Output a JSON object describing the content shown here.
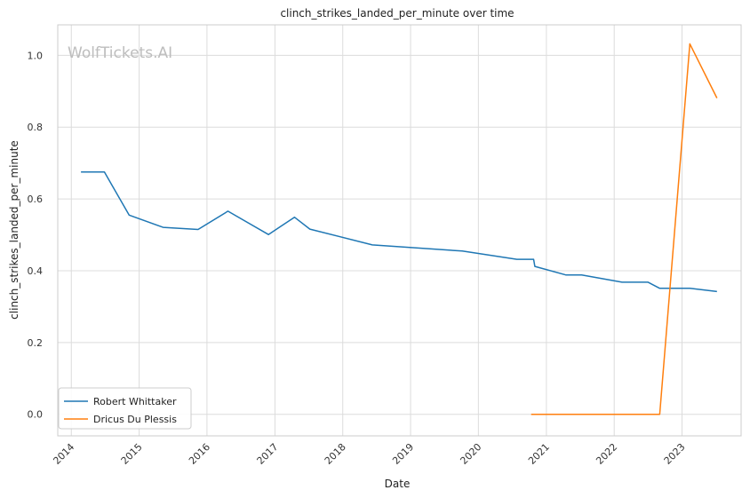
{
  "chart_data": {
    "type": "line",
    "title": "clinch_strikes_landed_per_minute over time",
    "xlabel": "Date",
    "ylabel": "clinch_strikes_landed_per_minute",
    "watermark": "WolfTickets.AI",
    "x_axis_type": "date",
    "xlim": [
      "2013-10-20",
      "2023-11-15"
    ],
    "ylim": [
      -0.06,
      1.085
    ],
    "x_ticks": [
      "2014",
      "2015",
      "2016",
      "2017",
      "2018",
      "2019",
      "2020",
      "2021",
      "2022",
      "2023"
    ],
    "y_ticks": [
      "0.0",
      "0.2",
      "0.4",
      "0.6",
      "0.8",
      "1.0"
    ],
    "grid": true,
    "legend_position": "lower-left",
    "series": [
      {
        "name": "Robert Whittaker",
        "color": "#1f77b4",
        "points": [
          {
            "x": "2014-02-22",
            "y": 0.675
          },
          {
            "x": "2014-06-28",
            "y": 0.675
          },
          {
            "x": "2014-11-08",
            "y": 0.555
          },
          {
            "x": "2015-05-10",
            "y": 0.521
          },
          {
            "x": "2015-11-14",
            "y": 0.515
          },
          {
            "x": "2016-04-23",
            "y": 0.566
          },
          {
            "x": "2016-11-27",
            "y": 0.501
          },
          {
            "x": "2017-04-16",
            "y": 0.549
          },
          {
            "x": "2017-07-08",
            "y": 0.516
          },
          {
            "x": "2018-06-09",
            "y": 0.472
          },
          {
            "x": "2019-10-06",
            "y": 0.455
          },
          {
            "x": "2020-07-26",
            "y": 0.432
          },
          {
            "x": "2020-10-24",
            "y": 0.432
          },
          {
            "x": "2020-10-31",
            "y": 0.412
          },
          {
            "x": "2021-04-17",
            "y": 0.388
          },
          {
            "x": "2021-07-10",
            "y": 0.388
          },
          {
            "x": "2022-02-12",
            "y": 0.368
          },
          {
            "x": "2022-07-02",
            "y": 0.368
          },
          {
            "x": "2022-09-03",
            "y": 0.351
          },
          {
            "x": "2023-02-12",
            "y": 0.351
          },
          {
            "x": "2023-07-08",
            "y": 0.342
          }
        ]
      },
      {
        "name": "Dricus Du Plessis",
        "color": "#ff7f0e",
        "points": [
          {
            "x": "2020-10-11",
            "y": 0.0
          },
          {
            "x": "2021-07-10",
            "y": 0.0
          },
          {
            "x": "2022-09-03",
            "y": 0.0
          },
          {
            "x": "2023-02-12",
            "y": 1.032
          },
          {
            "x": "2023-07-08",
            "y": 0.881
          }
        ]
      }
    ]
  }
}
